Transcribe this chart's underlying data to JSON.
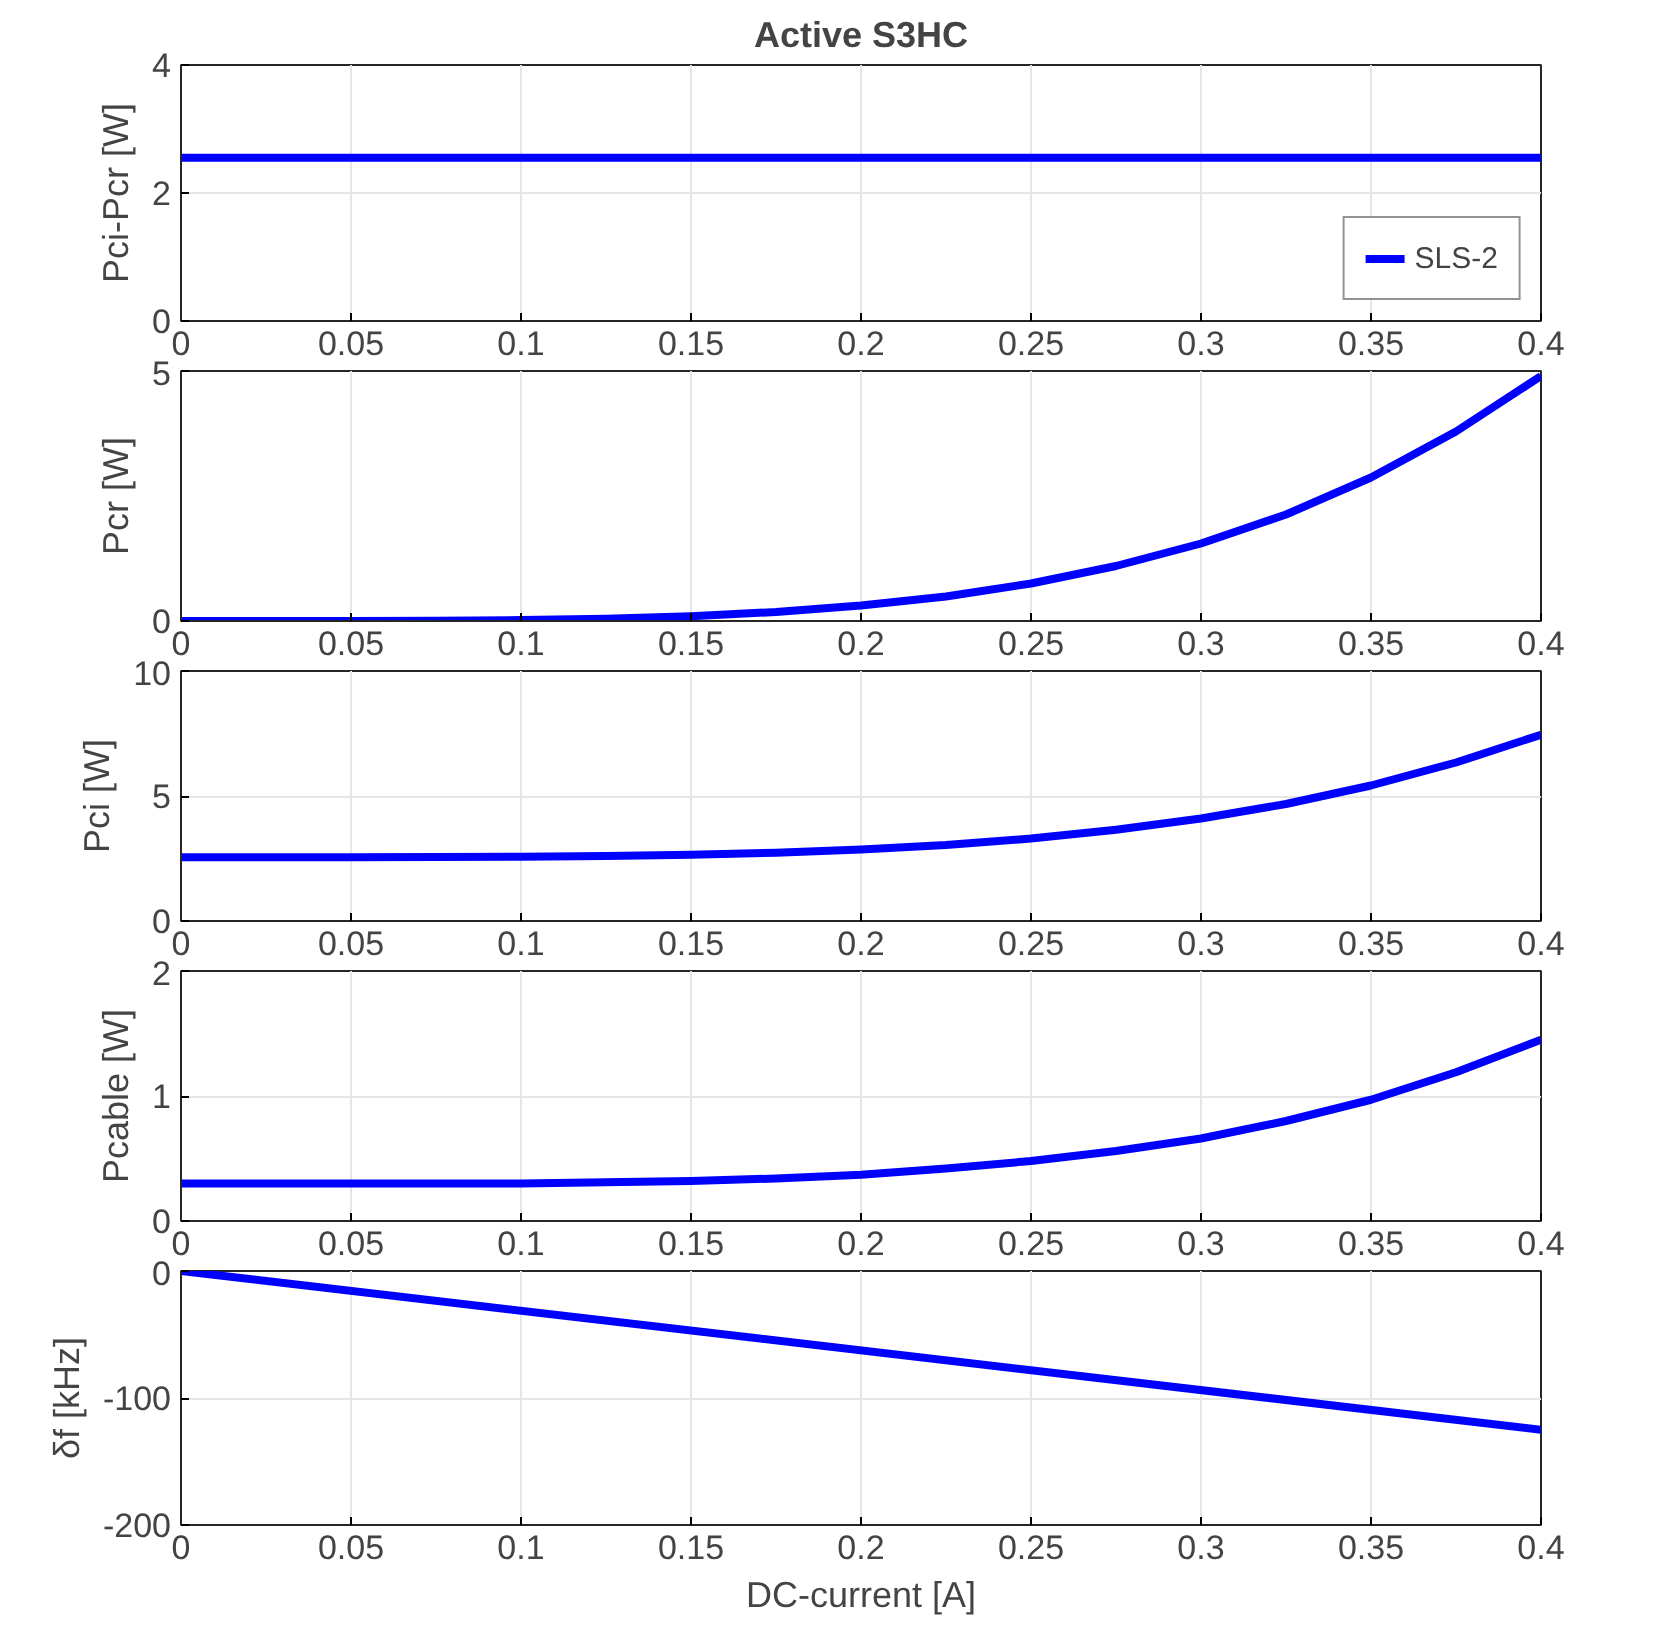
{
  "chart_data": [
    {
      "type": "line",
      "title": "Active S3HC",
      "ylabel": "Pci-Pcr [W]",
      "x": [
        0,
        0.025,
        0.05,
        0.075,
        0.1,
        0.125,
        0.15,
        0.175,
        0.2,
        0.225,
        0.25,
        0.275,
        0.3,
        0.325,
        0.35,
        0.375,
        0.4
      ],
      "series": [
        {
          "name": "SLS-2",
          "color": "#0000ff",
          "values": [
            2.55,
            2.55,
            2.55,
            2.55,
            2.55,
            2.55,
            2.55,
            2.55,
            2.55,
            2.55,
            2.55,
            2.55,
            2.55,
            2.55,
            2.55,
            2.55,
            2.55
          ]
        }
      ],
      "xlim": [
        0,
        0.4
      ],
      "xticks": [
        0,
        0.05,
        0.1,
        0.15,
        0.2,
        0.25,
        0.3,
        0.35,
        0.4
      ],
      "ylim": [
        0,
        4
      ],
      "yticks": [
        0,
        2,
        4
      ],
      "grid": true,
      "legend": "bottom right"
    },
    {
      "type": "line",
      "ylabel": "Pcr [W]",
      "x": [
        0,
        0.025,
        0.05,
        0.075,
        0.1,
        0.125,
        0.15,
        0.175,
        0.2,
        0.225,
        0.25,
        0.275,
        0.3,
        0.325,
        0.35,
        0.375,
        0.4
      ],
      "series": [
        {
          "color": "#0000ff",
          "values": [
            0,
            0,
            0.001,
            0.006,
            0.019,
            0.047,
            0.097,
            0.18,
            0.31,
            0.49,
            0.75,
            1.1,
            1.55,
            2.13,
            2.87,
            3.79,
            4.9
          ]
        }
      ],
      "xlim": [
        0,
        0.4
      ],
      "xticks": [
        0,
        0.05,
        0.1,
        0.15,
        0.2,
        0.25,
        0.3,
        0.35,
        0.4
      ],
      "ylim": [
        0,
        5
      ],
      "yticks": [
        0,
        5
      ],
      "grid": true
    },
    {
      "type": "line",
      "ylabel": "Pci [W]",
      "x": [
        0,
        0.025,
        0.05,
        0.075,
        0.1,
        0.125,
        0.15,
        0.175,
        0.2,
        0.225,
        0.25,
        0.275,
        0.3,
        0.325,
        0.35,
        0.375,
        0.4
      ],
      "series": [
        {
          "color": "#0000ff",
          "values": [
            2.55,
            2.55,
            2.55,
            2.56,
            2.57,
            2.6,
            2.65,
            2.73,
            2.86,
            3.04,
            3.3,
            3.65,
            4.1,
            4.68,
            5.42,
            6.34,
            7.45
          ]
        }
      ],
      "xlim": [
        0,
        0.4
      ],
      "xticks": [
        0,
        0.05,
        0.1,
        0.15,
        0.2,
        0.25,
        0.3,
        0.35,
        0.4
      ],
      "ylim": [
        0,
        10
      ],
      "yticks": [
        0,
        5,
        10
      ],
      "grid": true
    },
    {
      "type": "line",
      "ylabel": "Pcable [W]",
      "x": [
        0,
        0.025,
        0.05,
        0.075,
        0.1,
        0.125,
        0.15,
        0.175,
        0.2,
        0.225,
        0.25,
        0.275,
        0.3,
        0.325,
        0.35,
        0.375,
        0.4
      ],
      "series": [
        {
          "color": "#0000ff",
          "values": [
            0.3,
            0.3,
            0.3,
            0.3,
            0.3,
            0.31,
            0.32,
            0.34,
            0.37,
            0.42,
            0.48,
            0.56,
            0.66,
            0.8,
            0.97,
            1.19,
            1.45
          ]
        }
      ],
      "xlim": [
        0,
        0.4
      ],
      "xticks": [
        0,
        0.05,
        0.1,
        0.15,
        0.2,
        0.25,
        0.3,
        0.35,
        0.4
      ],
      "ylim": [
        0,
        2
      ],
      "yticks": [
        0,
        1,
        2
      ],
      "grid": true
    },
    {
      "type": "line",
      "ylabel": "δf [kHz]",
      "xlabel": "DC-current [A]",
      "x": [
        0,
        0.4
      ],
      "series": [
        {
          "color": "#0000ff",
          "values": [
            0,
            -125
          ]
        }
      ],
      "xlim": [
        0,
        0.4
      ],
      "xticks": [
        0,
        0.05,
        0.1,
        0.15,
        0.2,
        0.25,
        0.3,
        0.35,
        0.4
      ],
      "ylim": [
        -200,
        0
      ],
      "yticks": [
        -200,
        -100,
        0
      ],
      "grid": true
    }
  ]
}
